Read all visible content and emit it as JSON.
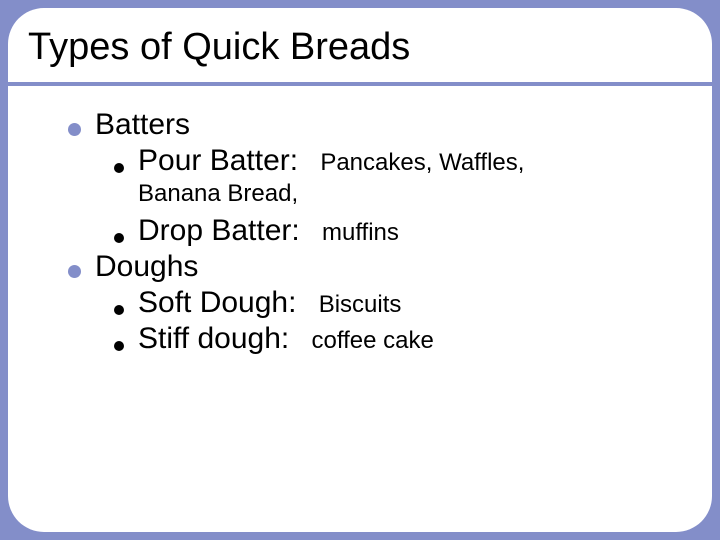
{
  "colors": {
    "background": "#838ec9",
    "card": "#ffffff",
    "bullet_large": "#838ec9",
    "bullet_small": "#000000",
    "text": "#000000"
  },
  "typography": {
    "title_fontsize": 38,
    "main_fontsize": 30,
    "sub_fontsize": 24,
    "font_family": "Arial"
  },
  "slide": {
    "title": "Types of Quick Breads",
    "sections": [
      {
        "label": "Batters",
        "items": [
          {
            "name": "Pour Batter:",
            "examples": "Pancakes, Waffles,",
            "continuation": "Banana Bread,"
          },
          {
            "name": "Drop Batter:",
            "examples": "muffins"
          }
        ]
      },
      {
        "label": "Doughs",
        "items": [
          {
            "name": "Soft Dough:",
            "examples": "Biscuits"
          },
          {
            "name": "Stiff dough:",
            "examples": "coffee cake"
          }
        ]
      }
    ]
  }
}
